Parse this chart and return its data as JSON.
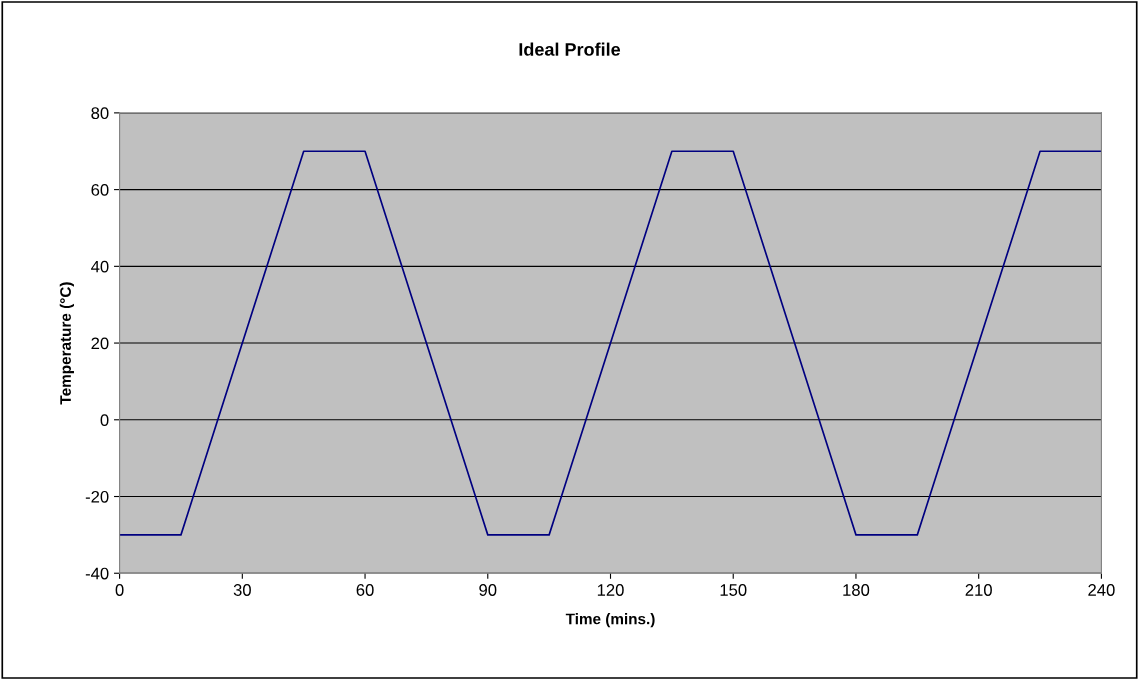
{
  "chart_data": {
    "type": "line",
    "title": "Ideal Profile",
    "xlabel": "Time (mins.)",
    "ylabel": "Temperature (°C)",
    "x": [
      0,
      15,
      45,
      60,
      90,
      105,
      135,
      150,
      180,
      195,
      225,
      240
    ],
    "series": [
      {
        "color": "#000080",
        "values": [
          -30,
          -30,
          70,
          70,
          -30,
          -30,
          70,
          70,
          -30,
          -30,
          70,
          70
        ]
      }
    ],
    "xlim": [
      0,
      240
    ],
    "xticks": [
      0,
      30,
      60,
      90,
      120,
      150,
      180,
      210,
      240
    ],
    "ylim": [
      -40,
      80
    ],
    "yticks": [
      -40,
      -20,
      0,
      20,
      40,
      60,
      80
    ],
    "grid": "y",
    "marker": "none",
    "line_style": "solid"
  }
}
